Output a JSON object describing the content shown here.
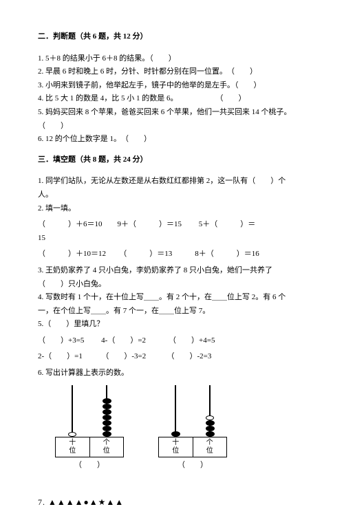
{
  "section2": {
    "title": "二．判断题（共 6 题，共 12 分）",
    "q1": "1. 5＋8 的结果小于 6＋8 的结果。（　　）",
    "q2": "2. 早晨 6 时和晚上 6 时，分针、时针都分别在同一位置。　（　　）",
    "q3": "3. 小明来到镜子前，他举起左手，镜子中的他举的是左手。（　　）",
    "q4": "4. 比 5 大 1 的数是 4，比 5 小 1 的数是 6。　　　　　　（　　）",
    "q5a": "5. 妈妈买回来 8 个苹果，爸爸买回来 6 个苹果，他们一共买回来 14 个桃子。",
    "q5b": "（　　）",
    "q6": "6. 12 的个位上数字是 1。　（　　）"
  },
  "section3": {
    "title": "三．填空题（共 8 题，共 24 分）",
    "q1a": "1. 同学们站队，无论从左数还是从右数红红都排第 2，这一队有（　　）个",
    "q1b": "人。",
    "q2": "2. 填一填。",
    "q2r1a": "（　　　）＋6＝10",
    "q2r1b": "9＋（　　　）＝15",
    "q2r1c": "5＋（　　　）＝",
    "q2r1d": "15",
    "q2r2a": "（　　　）＋10＝12",
    "q2r2b": "（　　　）＝13",
    "q2r2c": "8＋（　　　）＝16",
    "q3a": "3. 王奶奶家养了 4 只小白兔，李奶奶家养了 8 只小白兔，她们一共养了",
    "q3b": "（　　）只小白兔。",
    "q4a": "4. 写数时有 1 个十，在十位上写＿＿。有 2 个十，在＿＿位上写 2。有 6 个",
    "q4b": "一，在个位上写＿＿。有 7 个一，在＿＿位上写 7。",
    "q5": "5.（　　）里填几？",
    "q5r1a": "（　　）+3=5",
    "q5r1b": "4-（　　）=2",
    "q5r1c": "（　　）+4=5",
    "q5r2a": "2-（　　）=1",
    "q5r2b": "（　　）-3=2",
    "q5r2c": "（　　）-2=3",
    "q6": "6. 写出计算器上表示的数。",
    "q7": "7. ▲▲▲▲●▲★▲▲"
  },
  "abacus": {
    "tens_label_1": "十",
    "tens_label_2": "位",
    "ones_label_1": "个",
    "ones_label_2": "位",
    "result": "（　　）",
    "a1": {
      "tens_dark": 0,
      "tens_light": 1,
      "ones_dark": 7,
      "ones_light": 0
    },
    "a2": {
      "tens_dark": 1,
      "tens_light": 0,
      "ones_dark": 3,
      "ones_light": 1
    }
  },
  "colors": {
    "text": "#000000",
    "bg": "#ffffff"
  }
}
